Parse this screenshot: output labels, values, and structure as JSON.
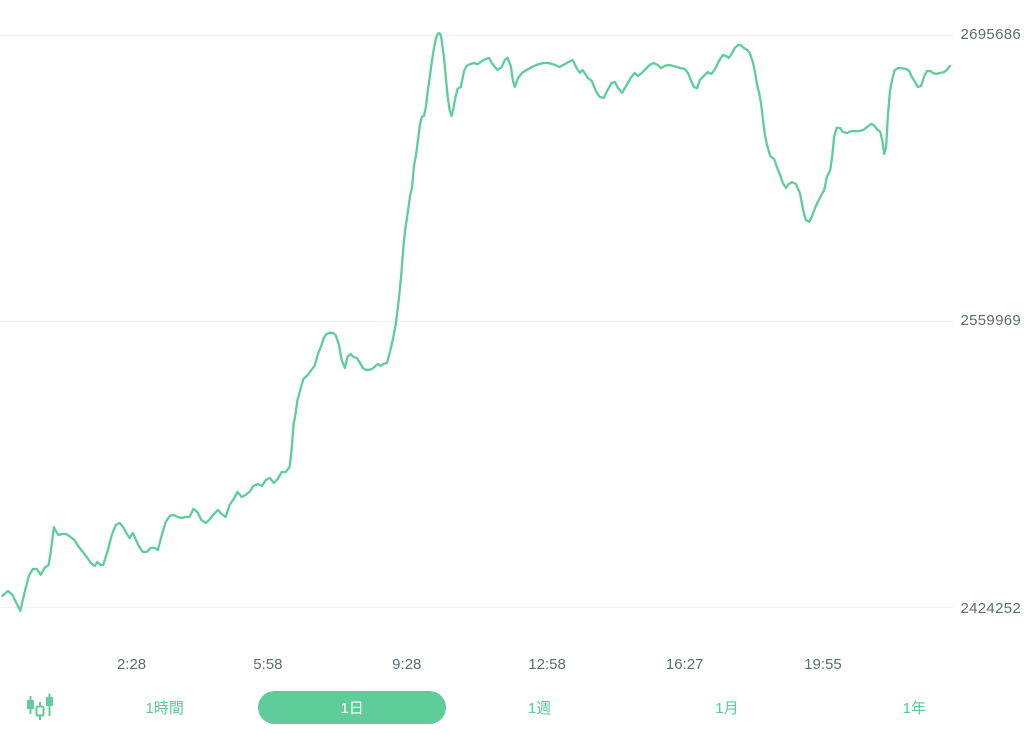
{
  "chart_data": {
    "type": "line",
    "title": "",
    "xlabel": "",
    "ylabel": "",
    "x_unit": "minutes_from_start",
    "x_range_minutes": [
      0,
      1439
    ],
    "ylim": [
      2424252,
      2695686
    ],
    "grid": "horizontal",
    "legend": "none",
    "y_ticks": [
      {
        "value": 2695686,
        "label": "2695686"
      },
      {
        "value": 2559969,
        "label": "2559969"
      },
      {
        "value": 2424252,
        "label": "2424252"
      }
    ],
    "x_ticks": [
      {
        "t": 196,
        "label": "2:28"
      },
      {
        "t": 403,
        "label": "5:58"
      },
      {
        "t": 614,
        "label": "9:28"
      },
      {
        "t": 827,
        "label": "12:58"
      },
      {
        "t": 1036,
        "label": "16:27"
      },
      {
        "t": 1246,
        "label": "19:55"
      }
    ],
    "series": [
      {
        "name": "price",
        "color": "#5ecd99",
        "points": [
          [
            0,
            2429500
          ],
          [
            8,
            2431900
          ],
          [
            15,
            2430000
          ],
          [
            21,
            2426200
          ],
          [
            27,
            2422400
          ],
          [
            33,
            2430400
          ],
          [
            40,
            2439000
          ],
          [
            46,
            2442300
          ],
          [
            52,
            2442300
          ],
          [
            58,
            2439500
          ],
          [
            64,
            2442800
          ],
          [
            70,
            2444200
          ],
          [
            73,
            2449900
          ],
          [
            78,
            2462200
          ],
          [
            81,
            2460300
          ],
          [
            85,
            2458400
          ],
          [
            91,
            2458900
          ],
          [
            97,
            2458900
          ],
          [
            103,
            2457500
          ],
          [
            109,
            2456100
          ],
          [
            116,
            2452700
          ],
          [
            122,
            2450400
          ],
          [
            128,
            2448000
          ],
          [
            134,
            2445200
          ],
          [
            140,
            2443700
          ],
          [
            144,
            2445600
          ],
          [
            149,
            2444200
          ],
          [
            153,
            2444200
          ],
          [
            160,
            2451300
          ],
          [
            166,
            2458400
          ],
          [
            172,
            2463200
          ],
          [
            178,
            2464100
          ],
          [
            184,
            2461800
          ],
          [
            188,
            2459400
          ],
          [
            193,
            2457000
          ],
          [
            198,
            2459400
          ],
          [
            202,
            2456500
          ],
          [
            207,
            2453200
          ],
          [
            213,
            2450400
          ],
          [
            219,
            2450400
          ],
          [
            225,
            2452300
          ],
          [
            231,
            2452300
          ],
          [
            236,
            2451300
          ],
          [
            242,
            2458400
          ],
          [
            248,
            2464600
          ],
          [
            254,
            2467500
          ],
          [
            260,
            2467900
          ],
          [
            266,
            2467000
          ],
          [
            272,
            2466500
          ],
          [
            278,
            2467000
          ],
          [
            284,
            2467000
          ],
          [
            290,
            2470800
          ],
          [
            296,
            2469300
          ],
          [
            302,
            2465600
          ],
          [
            309,
            2464100
          ],
          [
            315,
            2466000
          ],
          [
            321,
            2468400
          ],
          [
            327,
            2470300
          ],
          [
            333,
            2468400
          ],
          [
            339,
            2467000
          ],
          [
            345,
            2472700
          ],
          [
            351,
            2475500
          ],
          [
            357,
            2478800
          ],
          [
            363,
            2476500
          ],
          [
            369,
            2477400
          ],
          [
            375,
            2478800
          ],
          [
            381,
            2481700
          ],
          [
            388,
            2482600
          ],
          [
            394,
            2481700
          ],
          [
            400,
            2484500
          ],
          [
            406,
            2485500
          ],
          [
            412,
            2483100
          ],
          [
            418,
            2485000
          ],
          [
            424,
            2488300
          ],
          [
            430,
            2488300
          ],
          [
            436,
            2490700
          ],
          [
            439,
            2498800
          ],
          [
            442,
            2510600
          ],
          [
            445,
            2515900
          ],
          [
            448,
            2522500
          ],
          [
            453,
            2528200
          ],
          [
            457,
            2532500
          ],
          [
            464,
            2534400
          ],
          [
            470,
            2537200
          ],
          [
            474,
            2538600
          ],
          [
            479,
            2544300
          ],
          [
            483,
            2547200
          ],
          [
            488,
            2551900
          ],
          [
            492,
            2553800
          ],
          [
            497,
            2554300
          ],
          [
            502,
            2554300
          ],
          [
            506,
            2553300
          ],
          [
            511,
            2548600
          ],
          [
            515,
            2541500
          ],
          [
            520,
            2537700
          ],
          [
            524,
            2542900
          ],
          [
            529,
            2544300
          ],
          [
            533,
            2542900
          ],
          [
            538,
            2542400
          ],
          [
            543,
            2540100
          ],
          [
            547,
            2537700
          ],
          [
            552,
            2536700
          ],
          [
            556,
            2536700
          ],
          [
            561,
            2537200
          ],
          [
            565,
            2538200
          ],
          [
            570,
            2539600
          ],
          [
            574,
            2538600
          ],
          [
            579,
            2539600
          ],
          [
            584,
            2540100
          ],
          [
            588,
            2544800
          ],
          [
            591,
            2548600
          ],
          [
            594,
            2552900
          ],
          [
            597,
            2558100
          ],
          [
            600,
            2565200
          ],
          [
            603,
            2573300
          ],
          [
            606,
            2583200
          ],
          [
            609,
            2596000
          ],
          [
            612,
            2604100
          ],
          [
            616,
            2612600
          ],
          [
            619,
            2619300
          ],
          [
            622,
            2623600
          ],
          [
            625,
            2633500
          ],
          [
            628,
            2638700
          ],
          [
            631,
            2645900
          ],
          [
            634,
            2653500
          ],
          [
            637,
            2656800
          ],
          [
            640,
            2657300
          ],
          [
            643,
            2661500
          ],
          [
            646,
            2669600
          ],
          [
            649,
            2675800
          ],
          [
            652,
            2682900
          ],
          [
            655,
            2689000
          ],
          [
            658,
            2693800
          ],
          [
            661,
            2696200
          ],
          [
            663,
            2696600
          ],
          [
            665,
            2696100
          ],
          [
            667,
            2693300
          ],
          [
            668,
            2690500
          ],
          [
            670,
            2686200
          ],
          [
            673,
            2676700
          ],
          [
            676,
            2666700
          ],
          [
            679,
            2660100
          ],
          [
            682,
            2657300
          ],
          [
            685,
            2661000
          ],
          [
            688,
            2666300
          ],
          [
            691,
            2670100
          ],
          [
            696,
            2671000
          ],
          [
            701,
            2678600
          ],
          [
            705,
            2681000
          ],
          [
            710,
            2681900
          ],
          [
            716,
            2682400
          ],
          [
            722,
            2681900
          ],
          [
            728,
            2683300
          ],
          [
            734,
            2684300
          ],
          [
            739,
            2684800
          ],
          [
            743,
            2682400
          ],
          [
            748,
            2680500
          ],
          [
            752,
            2679100
          ],
          [
            758,
            2680500
          ],
          [
            763,
            2683800
          ],
          [
            767,
            2684800
          ],
          [
            772,
            2681000
          ],
          [
            775,
            2674300
          ],
          [
            778,
            2671000
          ],
          [
            783,
            2675300
          ],
          [
            789,
            2677700
          ],
          [
            796,
            2679100
          ],
          [
            804,
            2680500
          ],
          [
            811,
            2681500
          ],
          [
            821,
            2682400
          ],
          [
            830,
            2682400
          ],
          [
            839,
            2681500
          ],
          [
            846,
            2680500
          ],
          [
            854,
            2681900
          ],
          [
            862,
            2683300
          ],
          [
            866,
            2683800
          ],
          [
            872,
            2680000
          ],
          [
            877,
            2677700
          ],
          [
            881,
            2679100
          ],
          [
            889,
            2675300
          ],
          [
            895,
            2673900
          ],
          [
            901,
            2669100
          ],
          [
            907,
            2666300
          ],
          [
            913,
            2665800
          ],
          [
            919,
            2669600
          ],
          [
            925,
            2672900
          ],
          [
            930,
            2673400
          ],
          [
            935,
            2670500
          ],
          [
            941,
            2668200
          ],
          [
            948,
            2672000
          ],
          [
            954,
            2675300
          ],
          [
            960,
            2677700
          ],
          [
            965,
            2676200
          ],
          [
            971,
            2677700
          ],
          [
            977,
            2679600
          ],
          [
            983,
            2681500
          ],
          [
            989,
            2682400
          ],
          [
            995,
            2681500
          ],
          [
            1000,
            2680000
          ],
          [
            1006,
            2681000
          ],
          [
            1012,
            2681500
          ],
          [
            1018,
            2681000
          ],
          [
            1024,
            2680500
          ],
          [
            1030,
            2680000
          ],
          [
            1036,
            2679600
          ],
          [
            1041,
            2677700
          ],
          [
            1046,
            2673900
          ],
          [
            1050,
            2671000
          ],
          [
            1055,
            2670500
          ],
          [
            1059,
            2674300
          ],
          [
            1065,
            2676200
          ],
          [
            1071,
            2678100
          ],
          [
            1077,
            2677200
          ],
          [
            1083,
            2680000
          ],
          [
            1088,
            2683300
          ],
          [
            1094,
            2686200
          ],
          [
            1099,
            2685700
          ],
          [
            1103,
            2684800
          ],
          [
            1108,
            2687100
          ],
          [
            1112,
            2689500
          ],
          [
            1117,
            2690900
          ],
          [
            1121,
            2690900
          ],
          [
            1126,
            2689500
          ],
          [
            1131,
            2688600
          ],
          [
            1135,
            2687100
          ],
          [
            1140,
            2682400
          ],
          [
            1143,
            2677700
          ],
          [
            1146,
            2672000
          ],
          [
            1149,
            2668200
          ],
          [
            1152,
            2663400
          ],
          [
            1155,
            2655400
          ],
          [
            1158,
            2648200
          ],
          [
            1161,
            2643500
          ],
          [
            1166,
            2638300
          ],
          [
            1172,
            2636800
          ],
          [
            1176,
            2633100
          ],
          [
            1181,
            2629300
          ],
          [
            1185,
            2625500
          ],
          [
            1190,
            2623100
          ],
          [
            1194,
            2625000
          ],
          [
            1199,
            2625900
          ],
          [
            1205,
            2625000
          ],
          [
            1211,
            2620700
          ],
          [
            1216,
            2612600
          ],
          [
            1220,
            2607900
          ],
          [
            1225,
            2607000
          ],
          [
            1229,
            2609300
          ],
          [
            1234,
            2613600
          ],
          [
            1238,
            2616400
          ],
          [
            1243,
            2619300
          ],
          [
            1248,
            2622100
          ],
          [
            1252,
            2628300
          ],
          [
            1257,
            2631600
          ],
          [
            1260,
            2637800
          ],
          [
            1263,
            2647300
          ],
          [
            1267,
            2651600
          ],
          [
            1272,
            2651600
          ],
          [
            1276,
            2649700
          ],
          [
            1283,
            2649200
          ],
          [
            1289,
            2650100
          ],
          [
            1295,
            2650100
          ],
          [
            1301,
            2650100
          ],
          [
            1307,
            2650600
          ],
          [
            1313,
            2652000
          ],
          [
            1319,
            2653500
          ],
          [
            1323,
            2653000
          ],
          [
            1328,
            2651100
          ],
          [
            1333,
            2649700
          ],
          [
            1336,
            2645900
          ],
          [
            1339,
            2639200
          ],
          [
            1342,
            2642500
          ],
          [
            1345,
            2658700
          ],
          [
            1348,
            2669600
          ],
          [
            1351,
            2674300
          ],
          [
            1355,
            2679100
          ],
          [
            1360,
            2680000
          ],
          [
            1366,
            2680000
          ],
          [
            1372,
            2679600
          ],
          [
            1377,
            2678600
          ],
          [
            1381,
            2675800
          ],
          [
            1386,
            2673400
          ],
          [
            1390,
            2671000
          ],
          [
            1395,
            2671500
          ],
          [
            1400,
            2676200
          ],
          [
            1404,
            2678600
          ],
          [
            1409,
            2678600
          ],
          [
            1413,
            2677700
          ],
          [
            1418,
            2677200
          ],
          [
            1424,
            2677700
          ],
          [
            1430,
            2678100
          ],
          [
            1434,
            2679100
          ],
          [
            1439,
            2681000
          ]
        ]
      }
    ]
  },
  "toolbar": {
    "chart_type_icon": "candlestick-icon",
    "ranges": [
      {
        "label": "1時間",
        "selected": false
      },
      {
        "label": "1日",
        "selected": true
      },
      {
        "label": "1週",
        "selected": false
      },
      {
        "label": "1月",
        "selected": false
      },
      {
        "label": "1年",
        "selected": false
      }
    ]
  },
  "colors": {
    "line": "#5ecd99",
    "accent": "#5ecd99",
    "grid": "#eef0f1",
    "axis_text": "#5d6d70",
    "selected_text": "#ffffff",
    "background": "#ffffff"
  }
}
